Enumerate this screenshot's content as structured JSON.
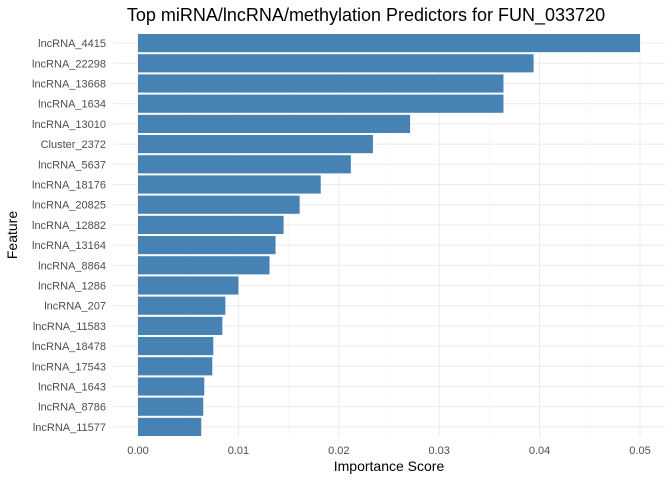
{
  "chart_data": {
    "type": "bar",
    "orientation": "horizontal",
    "title": "Top miRNA/lncRNA/methylation Predictors for FUN_033720",
    "xlabel": "Importance Score",
    "ylabel": "Feature",
    "xlim": [
      0,
      0.05
    ],
    "x_ticks": [
      "0.00",
      "0.01",
      "0.02",
      "0.03",
      "0.04",
      "0.05"
    ],
    "x_tick_values": [
      0,
      0.01,
      0.02,
      0.03,
      0.04,
      0.05
    ],
    "grid": true,
    "bar_color": "#4682b4",
    "categories": [
      "lncRNA_4415",
      "lncRNA_22298",
      "lncRNA_13668",
      "lncRNA_1634",
      "lncRNA_13010",
      "Cluster_2372",
      "lncRNA_5637",
      "lncRNA_18176",
      "lncRNA_20825",
      "lncRNA_12882",
      "lncRNA_13164",
      "lncRNA_8864",
      "lncRNA_1286",
      "lncRNA_207",
      "lncRNA_11583",
      "lncRNA_18478",
      "lncRNA_17543",
      "lncRNA_1643",
      "lncRNA_8786",
      "lncRNA_11577"
    ],
    "values": [
      0.05,
      0.0394,
      0.0364,
      0.0364,
      0.0271,
      0.0234,
      0.0212,
      0.0182,
      0.0161,
      0.0145,
      0.0137,
      0.0131,
      0.01,
      0.0087,
      0.0084,
      0.0075,
      0.0074,
      0.0066,
      0.0065,
      0.0063
    ]
  }
}
